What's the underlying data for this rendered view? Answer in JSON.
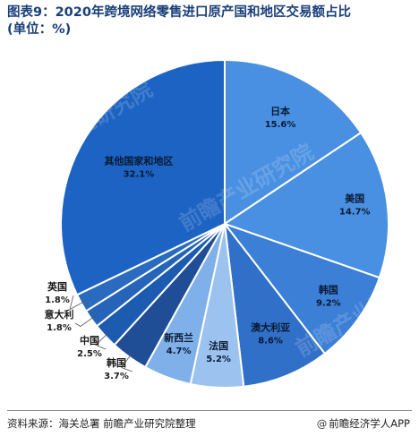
{
  "title_line1": "图表9：2020年跨境网络零售进口原产国和地区交易额占比",
  "title_line2": "(单位：%)",
  "footer": {
    "source": "资料来源：海关总署 前瞻产业研究院整理",
    "brand_icon": "@",
    "brand": "前瞻经济学人APP"
  },
  "watermark": "前瞻产业研究院",
  "chart_data": {
    "type": "pie",
    "title": "2020年跨境网络零售进口原产国和地区交易额占比",
    "unit": "%",
    "slices": [
      {
        "label": "日本",
        "value": 15.6,
        "value_label": "15.6%",
        "color": "#4a90e2"
      },
      {
        "label": "美国",
        "value": 14.7,
        "value_label": "14.7%",
        "color": "#4a90e2"
      },
      {
        "label": "韩国",
        "value": 9.2,
        "value_label": "9.2%",
        "color": "#3b7fd6"
      },
      {
        "label": "澳大利亚",
        "value": 8.6,
        "value_label": "8.6%",
        "color": "#3170c8"
      },
      {
        "label": "法国",
        "value": 5.2,
        "value_label": "5.2%",
        "color": "#9cc3f0"
      },
      {
        "label": "新西兰",
        "value": 4.7,
        "value_label": "4.7%",
        "color": "#7fb0ea"
      },
      {
        "label": "韩国",
        "value": 3.7,
        "value_label": "3.7%",
        "color": "#1f4e97"
      },
      {
        "label": "中国",
        "value": 2.5,
        "value_label": "2.5%",
        "color": "#1c5bb0"
      },
      {
        "label": "意大利",
        "value": 1.8,
        "value_label": "1.8%",
        "color": "#2564b8"
      },
      {
        "label": "英国",
        "value": 1.8,
        "value_label": "1.8%",
        "color": "#2a6bc0"
      },
      {
        "label": "其他国家和地区",
        "value": 32.1,
        "value_label": "32.1%",
        "color": "#1d63c3"
      }
    ]
  }
}
